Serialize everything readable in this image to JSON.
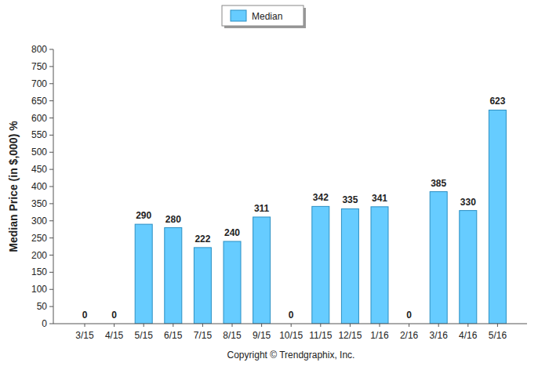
{
  "chart_data": {
    "type": "bar",
    "y_label": "Median Price (in $,000) %",
    "annotations": [
      "Copyright © Trendgraphix, Inc."
    ],
    "categories": [
      "3/15",
      "4/15",
      "5/15",
      "6/15",
      "7/15",
      "8/15",
      "9/15",
      "10/15",
      "11/15",
      "12/15",
      "1/16",
      "2/16",
      "3/16",
      "4/16",
      "5/16"
    ],
    "series": [
      {
        "name": "Median",
        "color": "#66ccff",
        "values": [
          0,
          0,
          290,
          280,
          222,
          240,
          311,
          0,
          342,
          335,
          341,
          0,
          385,
          330,
          623
        ]
      }
    ],
    "ylim": [
      0,
      800
    ],
    "yticks": [
      0,
      50,
      100,
      150,
      200,
      250,
      300,
      350,
      400,
      450,
      500,
      550,
      600,
      650,
      700,
      750,
      800
    ],
    "grid": false,
    "legend": "top",
    "data_labels": true
  }
}
